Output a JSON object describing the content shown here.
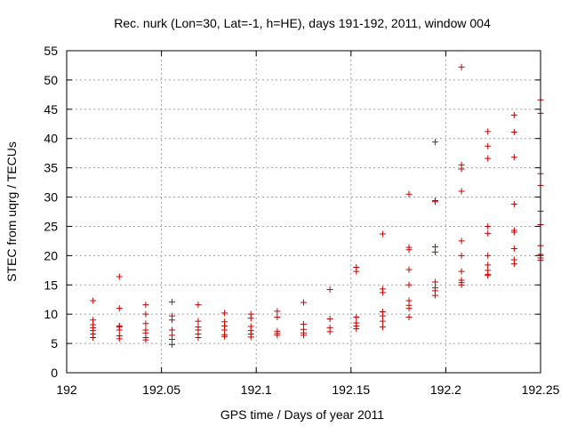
{
  "chart_data": {
    "type": "scatter",
    "title": "Rec. nurk (Lon=30, Lat=-1, h=HE), days 191-192, 2011, window 004",
    "xlabel": "GPS time / Days of year 2011",
    "ylabel": "STEC from uqrg / TECUs",
    "xlim": [
      192,
      192.25
    ],
    "ylim": [
      0,
      55
    ],
    "xticks": [
      192,
      192.05,
      192.1,
      192.15,
      192.2,
      192.25
    ],
    "xtick_labels": [
      "192",
      "192.05",
      "192.1",
      "192.15",
      "192.2",
      "192.25"
    ],
    "yticks": [
      0,
      5,
      10,
      15,
      20,
      25,
      30,
      35,
      40,
      45,
      50,
      55
    ],
    "ytick_labels": [
      "0",
      "5",
      "10",
      "15",
      "20",
      "25",
      "30",
      "35",
      "40",
      "45",
      "50",
      "55"
    ],
    "grid": true,
    "marker": "plus",
    "series_color": "#cc0000",
    "x": [
      192.0139,
      192.0139,
      192.0139,
      192.0139,
      192.0139,
      192.0139,
      192.0139,
      192.0278,
      192.0278,
      192.0278,
      192.0278,
      192.0278,
      192.0278,
      192.0278,
      192.0417,
      192.0417,
      192.0417,
      192.0417,
      192.0417,
      192.0417,
      192.0417,
      192.0556,
      192.0556,
      192.0556,
      192.0556,
      192.0556,
      192.0556,
      192.0556,
      192.0694,
      192.0694,
      192.0694,
      192.0694,
      192.0694,
      192.0694,
      192.0833,
      192.0833,
      192.0833,
      192.0833,
      192.0833,
      192.0833,
      192.0972,
      192.0972,
      192.0972,
      192.0972,
      192.0972,
      192.0972,
      192.1111,
      192.1111,
      192.1111,
      192.1111,
      192.1111,
      192.125,
      192.125,
      192.125,
      192.125,
      192.125,
      192.1389,
      192.1389,
      192.1389,
      192.1389,
      192.1528,
      192.1528,
      192.1528,
      192.1528,
      192.1528,
      192.1528,
      192.1667,
      192.1667,
      192.1667,
      192.1667,
      192.1667,
      192.1667,
      192.1667,
      192.1806,
      192.1806,
      192.1806,
      192.1806,
      192.1806,
      192.1806,
      192.1806,
      192.1806,
      192.1806,
      192.1944,
      192.1944,
      192.1944,
      192.1944,
      192.1944,
      192.1944,
      192.1944,
      192.1944,
      192.1944,
      192.2083,
      192.2083,
      192.2083,
      192.2083,
      192.2083,
      192.2083,
      192.2083,
      192.2083,
      192.2083,
      192.2083,
      192.2222,
      192.2222,
      192.2222,
      192.2222,
      192.2222,
      192.2222,
      192.2222,
      192.2222,
      192.2222,
      192.2222,
      192.2361,
      192.2361,
      192.2361,
      192.2361,
      192.2361,
      192.2361,
      192.2361,
      192.2361,
      192.2361,
      192.25,
      192.25,
      192.25,
      192.25,
      192.25,
      192.25,
      192.25,
      192.25,
      192.25,
      192.25,
      192.25
    ],
    "y": [
      12.3,
      9.0,
      8.2,
      7.7,
      7.2,
      6.6,
      6.0,
      16.4,
      11.0,
      8.0,
      7.8,
      7.3,
      6.3,
      5.8,
      11.6,
      10.0,
      8.4,
      7.3,
      6.8,
      6.0,
      5.6,
      12.1,
      9.7,
      9.0,
      7.3,
      6.4,
      5.7,
      4.8,
      11.6,
      8.8,
      7.8,
      7.3,
      6.6,
      6.0,
      10.2,
      8.7,
      8.0,
      7.3,
      6.5,
      6.2,
      10.0,
      9.3,
      7.9,
      7.2,
      6.6,
      6.1,
      10.5,
      9.5,
      7.1,
      6.7,
      6.4,
      12.0,
      8.3,
      7.4,
      6.8,
      6.4,
      14.2,
      9.2,
      7.7,
      7.0,
      18.0,
      17.3,
      9.5,
      8.5,
      8.0,
      7.5,
      23.7,
      14.3,
      13.7,
      10.4,
      9.7,
      8.8,
      7.8,
      30.5,
      21.4,
      21.0,
      17.6,
      15.0,
      12.3,
      11.5,
      11.0,
      9.5,
      39.4,
      29.4,
      29.2,
      21.5,
      20.6,
      15.5,
      14.5,
      14.0,
      13.2,
      52.2,
      35.5,
      34.8,
      31.0,
      22.5,
      20.0,
      17.3,
      15.8,
      15.4,
      15.0,
      41.2,
      38.7,
      36.6,
      25.0,
      23.8,
      20.0,
      18.4,
      17.5,
      16.8,
      16.6,
      44.0,
      41.1,
      36.8,
      28.8,
      24.3,
      24.0,
      21.2,
      19.3,
      18.6,
      46.6,
      44.3,
      34.0,
      32.0,
      27.6,
      25.3,
      21.7,
      20.2,
      20.0,
      19.6,
      19.2
    ]
  }
}
